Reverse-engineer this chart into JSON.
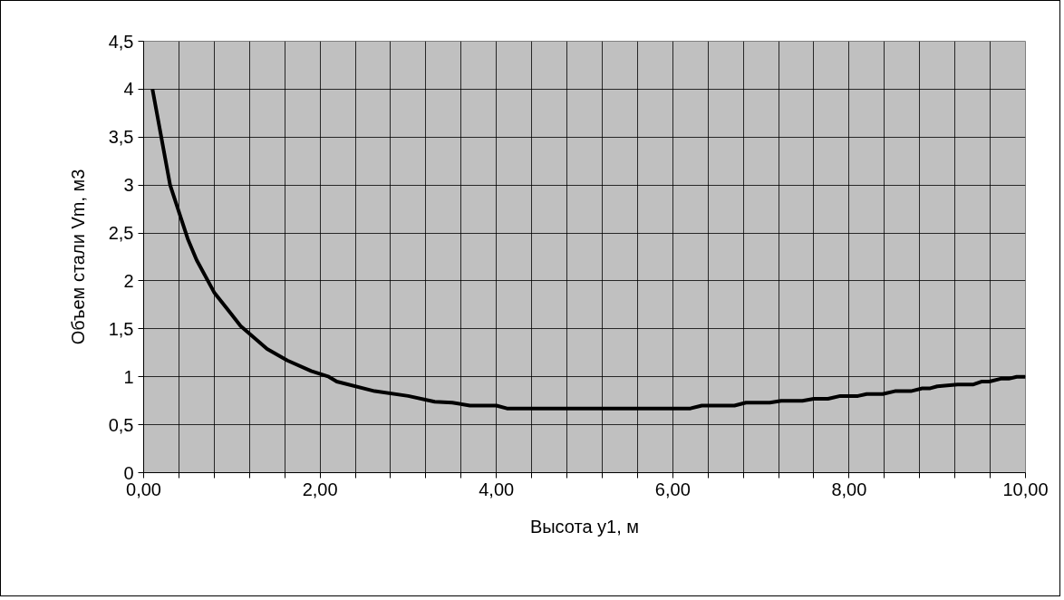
{
  "chart_data": {
    "type": "line",
    "xlabel": "Высота у1, м",
    "ylabel": "Объем стали Vm, м3",
    "series": [
      {
        "color": "#000000",
        "x": [
          0.1,
          0.3,
          0.5,
          0.6,
          0.8,
          1.1,
          1.4,
          1.63,
          1.9,
          2.1,
          2.19,
          2.62,
          3.0,
          3.3,
          3.5,
          3.7,
          4.0,
          4.12,
          6.2,
          6.33,
          6.7,
          6.83,
          7.1,
          7.23,
          7.47,
          7.6,
          7.76,
          7.9,
          8.1,
          8.2,
          8.38,
          8.52,
          8.7,
          8.83,
          8.92,
          9.0,
          9.23,
          9.41,
          9.5,
          9.59,
          9.72,
          9.81,
          9.9,
          10.0
        ],
        "values": [
          4.0,
          3.0,
          2.44,
          2.22,
          1.88,
          1.53,
          1.29,
          1.17,
          1.06,
          1.0,
          0.95,
          0.85,
          0.8,
          0.74,
          0.73,
          0.7,
          0.7,
          0.67,
          0.67,
          0.7,
          0.7,
          0.73,
          0.73,
          0.75,
          0.75,
          0.77,
          0.77,
          0.8,
          0.8,
          0.82,
          0.82,
          0.85,
          0.85,
          0.88,
          0.88,
          0.9,
          0.92,
          0.92,
          0.95,
          0.95,
          0.98,
          0.98,
          1.0,
          1.0
        ]
      }
    ],
    "xlim": [
      0,
      10
    ],
    "ylim": [
      0,
      4.5
    ],
    "xticks": [
      {
        "value": 0,
        "label": "0,00"
      },
      {
        "value": 0.4,
        "label": null
      },
      {
        "value": 0.8,
        "label": null
      },
      {
        "value": 1.2,
        "label": null
      },
      {
        "value": 1.6,
        "label": null
      },
      {
        "value": 2,
        "label": "2,00"
      },
      {
        "value": 2.4,
        "label": null
      },
      {
        "value": 2.8,
        "label": null
      },
      {
        "value": 3.2,
        "label": null
      },
      {
        "value": 3.6,
        "label": null
      },
      {
        "value": 4,
        "label": "4,00"
      },
      {
        "value": 4.4,
        "label": null
      },
      {
        "value": 4.8,
        "label": null
      },
      {
        "value": 5.2,
        "label": null
      },
      {
        "value": 5.6,
        "label": null
      },
      {
        "value": 6,
        "label": "6,00"
      },
      {
        "value": 6.4,
        "label": null
      },
      {
        "value": 6.8,
        "label": null
      },
      {
        "value": 7.2,
        "label": null
      },
      {
        "value": 7.6,
        "label": null
      },
      {
        "value": 8,
        "label": "8,00"
      },
      {
        "value": 8.4,
        "label": null
      },
      {
        "value": 8.8,
        "label": null
      },
      {
        "value": 9.2,
        "label": null
      },
      {
        "value": 9.6,
        "label": null
      },
      {
        "value": 10,
        "label": "10,00"
      }
    ],
    "yticks": [
      0,
      {
        "value": 0.5,
        "label": "0,5"
      },
      1,
      {
        "value": 1.5,
        "label": "1,5"
      },
      2,
      {
        "value": 2.5,
        "label": "2,5"
      },
      3,
      {
        "value": 3.5,
        "label": "3,5"
      },
      4,
      {
        "value": 4.5,
        "label": "4,5"
      }
    ],
    "grid": true,
    "marker": "none",
    "line_style": "solid"
  }
}
